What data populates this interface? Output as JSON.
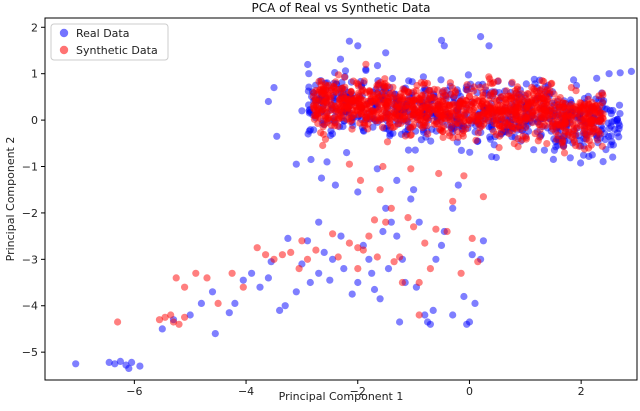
{
  "chart_data": {
    "type": "scatter",
    "title": "PCA of Real vs Synthetic Data",
    "xlabel": "Principal Component 1",
    "ylabel": "Principal Component 2",
    "xlim": [
      -7.6,
      3.0
    ],
    "ylim": [
      -5.6,
      2.2
    ],
    "xticks": [
      -6,
      -4,
      -2,
      0,
      2
    ],
    "yticks": [
      -5,
      -4,
      -3,
      -2,
      -1,
      0,
      1,
      2
    ],
    "grid": false,
    "legend_position": "top-left",
    "series": [
      {
        "name": "Real Data",
        "color": "#0000ff",
        "cluster": {
          "x_range": [
            -2.9,
            2.7
          ],
          "y_center": 0.05,
          "y_spread": 0.55,
          "count": 700
        },
        "points": [
          [
            -7.05,
            -5.25
          ],
          [
            -6.45,
            -5.22
          ],
          [
            -6.35,
            -5.25
          ],
          [
            -6.25,
            -5.2
          ],
          [
            -6.15,
            -5.28
          ],
          [
            -6.05,
            -5.22
          ],
          [
            -6.1,
            -5.35
          ],
          [
            -5.9,
            -5.3
          ],
          [
            -5.5,
            -4.5
          ],
          [
            -5.3,
            -4.3
          ],
          [
            -5.0,
            -4.2
          ],
          [
            -4.8,
            -3.95
          ],
          [
            -4.6,
            -3.7
          ],
          [
            -4.55,
            -4.6
          ],
          [
            -4.3,
            -4.15
          ],
          [
            -4.2,
            -3.95
          ],
          [
            -4.05,
            -3.45
          ],
          [
            -3.9,
            -3.3
          ],
          [
            -3.75,
            -3.6
          ],
          [
            -3.6,
            -3.4
          ],
          [
            -3.55,
            -3.05
          ],
          [
            -3.4,
            -4.1
          ],
          [
            -3.3,
            -4.0
          ],
          [
            -3.1,
            -3.7
          ],
          [
            -3.0,
            -3.1
          ],
          [
            -2.85,
            -3.5
          ],
          [
            -2.7,
            -3.3
          ],
          [
            -2.6,
            -2.85
          ],
          [
            -2.5,
            -3.45
          ],
          [
            -2.45,
            -3.0
          ],
          [
            -2.3,
            -2.5
          ],
          [
            -2.25,
            -3.2
          ],
          [
            -2.1,
            -3.75
          ],
          [
            -2.0,
            -3.5
          ],
          [
            -1.9,
            -2.7
          ],
          [
            -1.8,
            -3.0
          ],
          [
            -1.75,
            -3.3
          ],
          [
            -1.7,
            -3.65
          ],
          [
            -1.6,
            -3.85
          ],
          [
            -1.55,
            -2.4
          ],
          [
            -1.5,
            -1.9
          ],
          [
            -1.45,
            -3.2
          ],
          [
            -1.4,
            -2.2
          ],
          [
            -1.3,
            -2.5
          ],
          [
            -1.2,
            -3.0
          ],
          [
            -1.15,
            -3.5
          ],
          [
            -1.05,
            -1.7
          ],
          [
            -1.0,
            -1.5
          ],
          [
            -0.9,
            -2.2
          ],
          [
            -0.8,
            -4.2
          ],
          [
            -0.75,
            -4.35
          ],
          [
            -0.7,
            -4.4
          ],
          [
            -0.6,
            -3.0
          ],
          [
            -0.5,
            -2.7
          ],
          [
            -0.45,
            -2.4
          ],
          [
            -0.3,
            -1.9
          ],
          [
            -0.2,
            -1.4
          ],
          [
            -0.1,
            -3.8
          ],
          [
            -0.05,
            -4.4
          ],
          [
            0.0,
            -4.35
          ],
          [
            0.05,
            -2.9
          ],
          [
            0.1,
            -3.95
          ],
          [
            0.2,
            -3.0
          ],
          [
            0.25,
            -2.6
          ],
          [
            -2.4,
            -1.4
          ],
          [
            -2.0,
            -1.55
          ],
          [
            -2.65,
            -1.25
          ],
          [
            -2.55,
            -0.9
          ],
          [
            -2.2,
            -0.7
          ],
          [
            -1.3,
            -1.3
          ],
          [
            -1.65,
            -1.05
          ],
          [
            -3.1,
            -0.95
          ],
          [
            -3.45,
            -0.35
          ],
          [
            -3.6,
            0.4
          ],
          [
            -3.5,
            0.7
          ],
          [
            -3.0,
            0.2
          ],
          [
            2.9,
            1.05
          ],
          [
            2.7,
            1.02
          ],
          [
            2.5,
            1.0
          ],
          [
            2.2,
            -0.75
          ],
          [
            2.05,
            -0.4
          ],
          [
            1.7,
            -0.35
          ],
          [
            -0.5,
            1.72
          ],
          [
            -0.45,
            1.6
          ],
          [
            0.2,
            1.8
          ],
          [
            0.35,
            1.6
          ],
          [
            -2.0,
            1.6
          ],
          [
            -2.15,
            1.7
          ],
          [
            -1.5,
            1.45
          ],
          [
            -0.3,
            -4.2
          ],
          [
            -1.25,
            -4.35
          ],
          [
            -2.7,
            -2.2
          ],
          [
            -2.9,
            -2.6
          ],
          [
            -3.25,
            -2.55
          ],
          [
            -0.95,
            -3.6
          ],
          [
            -0.65,
            -4.1
          ]
        ]
      },
      {
        "name": "Synthetic Data",
        "color": "#ff0000",
        "cluster": {
          "x_range": [
            -2.8,
            2.4
          ],
          "y_center": 0.1,
          "y_spread": 0.45,
          "count": 1100
        },
        "points": [
          [
            -6.3,
            -4.35
          ],
          [
            -5.55,
            -4.3
          ],
          [
            -5.45,
            -4.25
          ],
          [
            -5.35,
            -4.2
          ],
          [
            -5.3,
            -4.35
          ],
          [
            -5.2,
            -4.4
          ],
          [
            -5.1,
            -4.25
          ],
          [
            -5.25,
            -3.4
          ],
          [
            -5.1,
            -3.6
          ],
          [
            -4.9,
            -3.3
          ],
          [
            -4.7,
            -3.4
          ],
          [
            -4.5,
            -3.95
          ],
          [
            -4.25,
            -3.3
          ],
          [
            -4.05,
            -3.6
          ],
          [
            -3.8,
            -2.75
          ],
          [
            -3.65,
            -2.9
          ],
          [
            -3.5,
            -3.0
          ],
          [
            -3.35,
            -2.9
          ],
          [
            -3.2,
            -2.85
          ],
          [
            -3.05,
            -3.2
          ],
          [
            -2.9,
            -3.0
          ],
          [
            -2.75,
            -2.8
          ],
          [
            -2.45,
            -2.45
          ],
          [
            -2.35,
            -2.95
          ],
          [
            -2.15,
            -2.65
          ],
          [
            -2.0,
            -3.2
          ],
          [
            -1.9,
            -2.8
          ],
          [
            -1.8,
            -2.5
          ],
          [
            -1.7,
            -2.15
          ],
          [
            -1.6,
            -1.5
          ],
          [
            -1.5,
            -2.2
          ],
          [
            -1.4,
            -1.9
          ],
          [
            -1.35,
            -3.05
          ],
          [
            -1.25,
            -2.95
          ],
          [
            -1.1,
            -2.1
          ],
          [
            -1.0,
            -2.3
          ],
          [
            -0.9,
            -3.5
          ],
          [
            -0.8,
            -2.65
          ],
          [
            -0.7,
            -3.2
          ],
          [
            -0.6,
            -2.35
          ],
          [
            -0.4,
            -2.4
          ],
          [
            -0.3,
            -1.75
          ],
          [
            -0.15,
            -3.3
          ],
          [
            -0.1,
            -1.2
          ],
          [
            0.05,
            -2.55
          ],
          [
            0.15,
            -3.05
          ],
          [
            0.25,
            -1.65
          ],
          [
            -2.15,
            -0.95
          ],
          [
            -1.95,
            -1.3
          ],
          [
            -1.55,
            -1.0
          ],
          [
            -1.05,
            -1.05
          ],
          [
            -0.55,
            -1.15
          ],
          [
            1.3,
            0.85
          ],
          [
            1.6,
            -0.1
          ],
          [
            1.9,
            -0.55
          ],
          [
            -0.9,
            -4.2
          ],
          [
            -1.2,
            -3.5
          ],
          [
            -2.0,
            -2.75
          ],
          [
            -1.65,
            -2.95
          ],
          [
            -3.0,
            -2.6
          ]
        ]
      }
    ]
  }
}
